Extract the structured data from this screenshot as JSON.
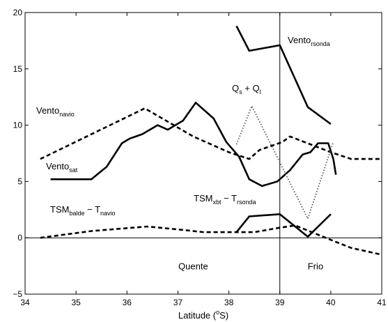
{
  "chart_data": {
    "type": "line",
    "xlabel": "Latitude (°S)",
    "xlabel_parts": {
      "pre": "Latitude (",
      "sup": "o",
      "post": "S)"
    },
    "xlim": [
      34,
      41
    ],
    "ylim": [
      -5,
      20
    ],
    "xticks": [
      "34",
      "35",
      "36",
      "37",
      "38",
      "39",
      "40",
      "41"
    ],
    "yticks": [
      "−5",
      "0",
      "5",
      "10",
      "15",
      "20"
    ],
    "reference_lines": {
      "vertical_x": 39,
      "horizontal_y": 0
    },
    "annotations": [
      {
        "text": "Quente",
        "x": 37.3,
        "y": -2.5
      },
      {
        "text": "Frio",
        "x": 39.7,
        "y": -2.5
      }
    ],
    "series": [
      {
        "name": "Vento navio",
        "label_main": "Vento",
        "label_sub": "navio",
        "style": "dashed",
        "width": 2.6,
        "points": [
          [
            34.3,
            7.0
          ],
          [
            36.35,
            11.5
          ],
          [
            37.3,
            9.0
          ],
          [
            38.0,
            7.6
          ],
          [
            38.4,
            7.0
          ],
          [
            38.6,
            7.8
          ],
          [
            39.05,
            8.5
          ],
          [
            39.2,
            9.0
          ],
          [
            40.0,
            7.6
          ],
          [
            40.4,
            7.0
          ],
          [
            41.0,
            7.0
          ]
        ]
      },
      {
        "name": "Vento sat",
        "label_main": "Vento",
        "label_sub": "sat",
        "style": "solid",
        "width": 2.6,
        "points": [
          [
            34.5,
            5.2
          ],
          [
            35.3,
            5.2
          ],
          [
            35.6,
            6.3
          ],
          [
            35.9,
            8.4
          ],
          [
            36.05,
            8.8
          ],
          [
            36.3,
            9.2
          ],
          [
            36.6,
            10.0
          ],
          [
            36.8,
            9.6
          ],
          [
            37.1,
            10.4
          ],
          [
            37.35,
            12.0
          ],
          [
            37.7,
            10.6
          ],
          [
            37.95,
            8.5
          ],
          [
            38.2,
            7.2
          ],
          [
            38.4,
            5.2
          ],
          [
            38.65,
            4.6
          ],
          [
            38.95,
            5.0
          ],
          [
            39.2,
            6.0
          ],
          [
            39.45,
            7.4
          ],
          [
            39.6,
            7.6
          ],
          [
            39.75,
            8.4
          ],
          [
            39.95,
            8.4
          ],
          [
            40.05,
            7.0
          ],
          [
            40.1,
            5.6
          ]
        ]
      },
      {
        "name": "Vento rsonda",
        "label_main": "Vento",
        "label_sub": "rsonda",
        "style": "solid",
        "width": 2.6,
        "points": [
          [
            38.15,
            18.8
          ],
          [
            38.4,
            16.6
          ],
          [
            39.0,
            17.1
          ],
          [
            39.55,
            11.6
          ],
          [
            40.0,
            10.1
          ]
        ]
      },
      {
        "name": "Qs + Ql",
        "label_main": "Q",
        "label_sub": "s",
        "label_mid": " + Q",
        "label_sub2": "l",
        "style": "dotted",
        "width": 1.8,
        "points": [
          [
            38.15,
            8.3
          ],
          [
            38.45,
            11.7
          ],
          [
            39.55,
            1.7
          ],
          [
            40.05,
            8.5
          ]
        ]
      },
      {
        "name": "TSM balde − T navio",
        "label_main": "TSM",
        "label_sub": "balde",
        "label_mid": " − T",
        "label_sub2": "navio",
        "style": "dashed",
        "width": 2.6,
        "points": [
          [
            34.3,
            0.0
          ],
          [
            35.3,
            0.6
          ],
          [
            36.4,
            1.0
          ],
          [
            37.1,
            0.7
          ],
          [
            37.5,
            0.5
          ],
          [
            38.0,
            0.5
          ],
          [
            38.5,
            0.5
          ],
          [
            39.0,
            0.9
          ],
          [
            39.3,
            1.1
          ],
          [
            39.9,
            0.0
          ],
          [
            40.4,
            -0.9
          ],
          [
            41.0,
            -1.5
          ]
        ]
      },
      {
        "name": "TSM xbt − T rsonda",
        "label_main": "TSM",
        "label_sub": "xbt",
        "label_mid": " − T",
        "label_sub2": "rsonda",
        "style": "solid",
        "width": 2.6,
        "points": [
          [
            38.15,
            0.5
          ],
          [
            38.4,
            1.9
          ],
          [
            39.0,
            2.1
          ],
          [
            39.55,
            0.1
          ],
          [
            40.0,
            2.1
          ]
        ]
      }
    ]
  }
}
